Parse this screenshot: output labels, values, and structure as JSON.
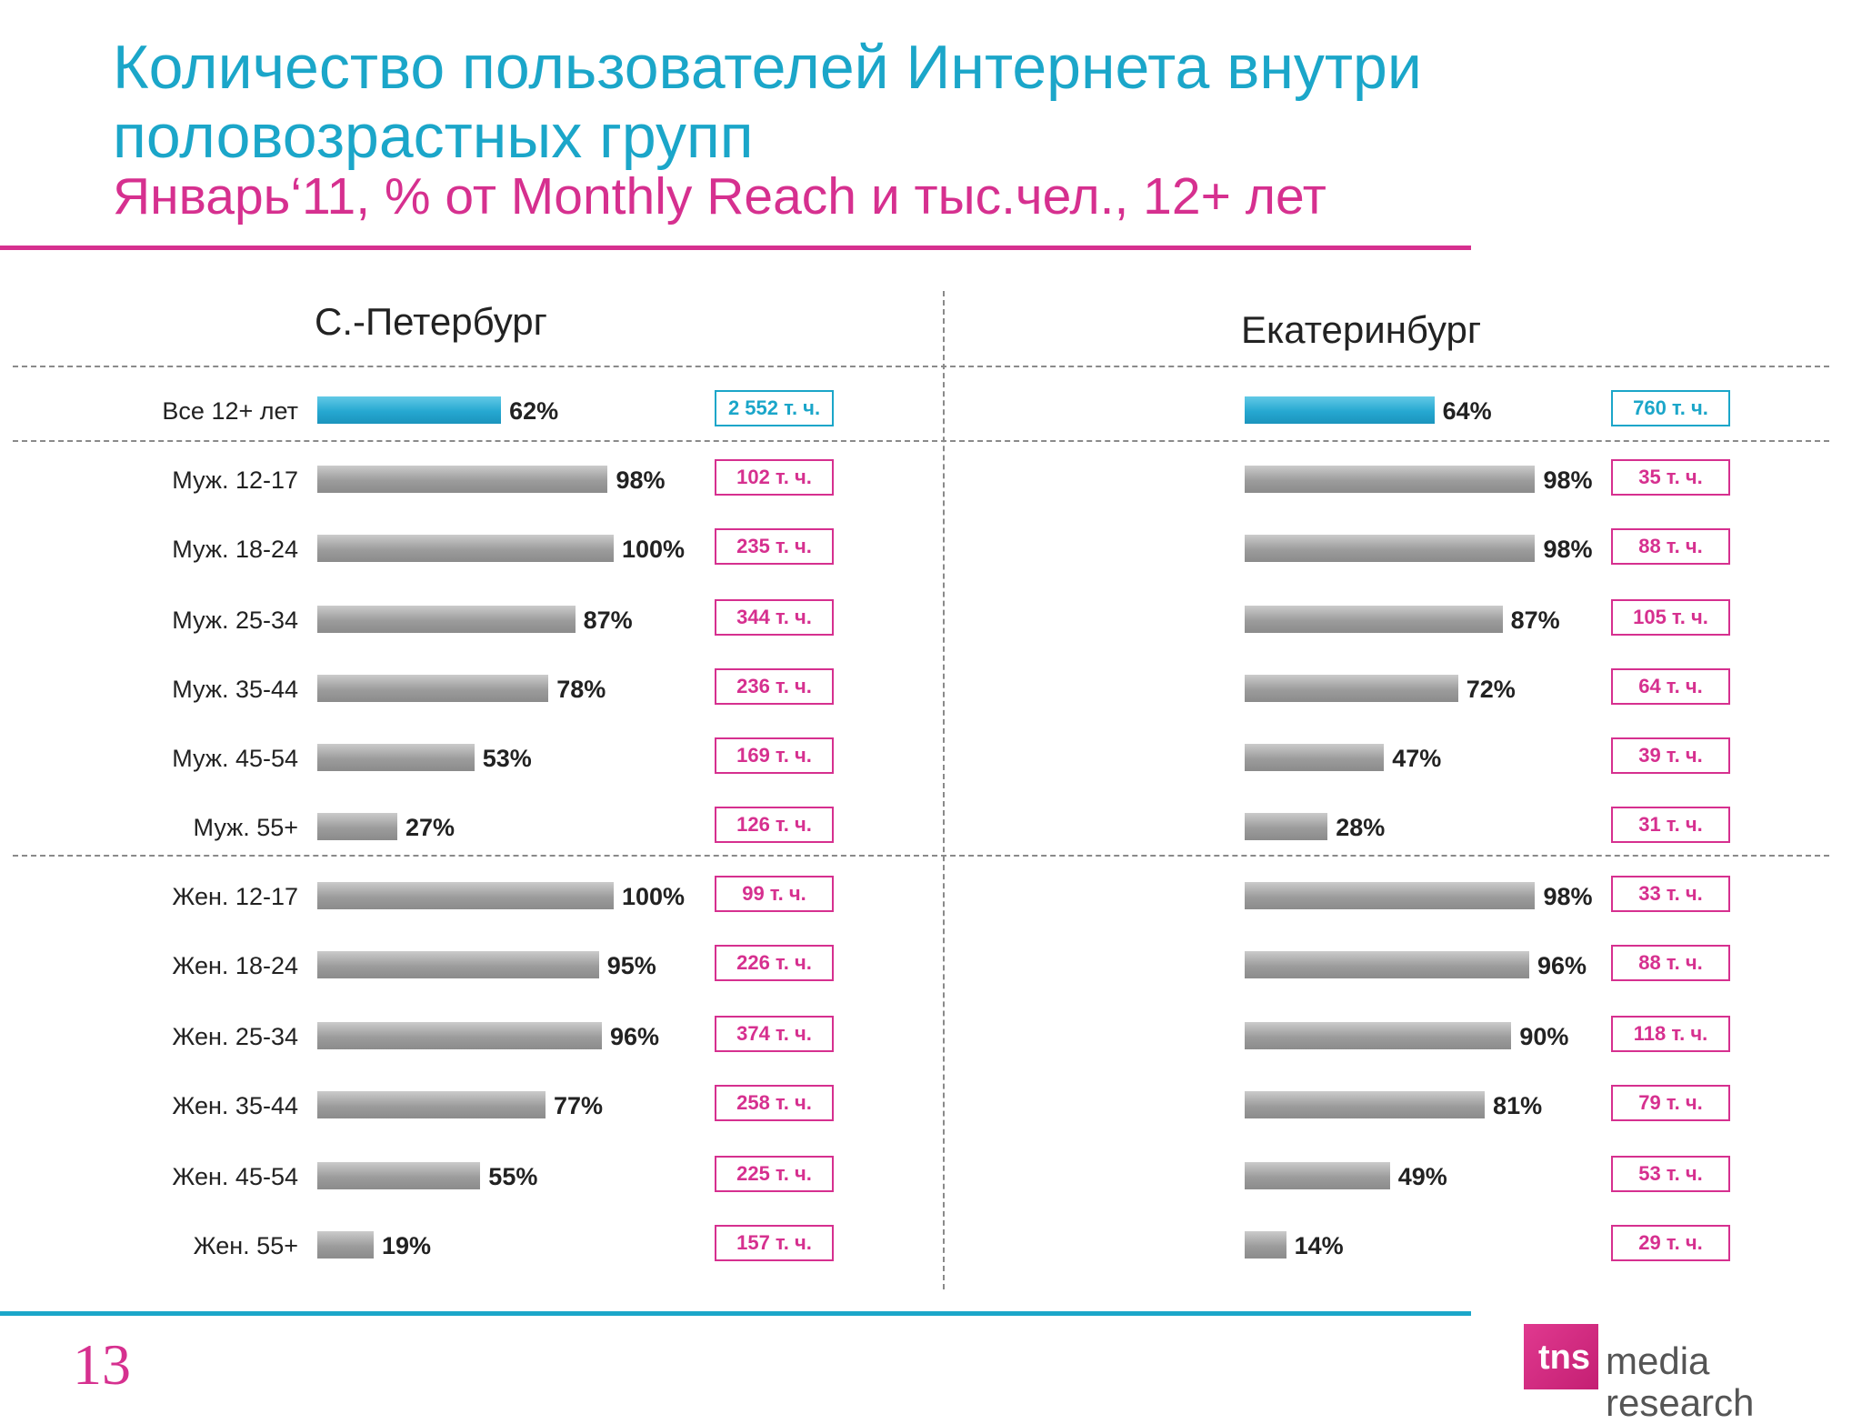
{
  "title": "Количество пользователей Интернета внутри половозрастных групп",
  "subtitle": "Январь‘11, % от Monthly Reach и тыс.чел., 12+ лет",
  "page_number": "13",
  "logo": {
    "brand": "tns",
    "text": "media research"
  },
  "colors": {
    "title": "#1ba6c9",
    "accent": "#d6308f",
    "bar": "#9c9c9c",
    "total_bar": "#26a8d1"
  },
  "chart_data": [
    {
      "type": "bar",
      "title": "С.-Петербург",
      "orientation": "horizontal",
      "xlim": [
        0,
        100
      ],
      "categories": [
        "Все 12+ лет",
        "Муж. 12-17",
        "Муж. 18-24",
        "Муж. 25-34",
        "Муж. 35-44",
        "Муж. 45-54",
        "Муж. 55+",
        "Жен. 12-17",
        "Жен. 18-24",
        "Жен. 25-34",
        "Жен. 35-44",
        "Жен. 45-54",
        "Жен. 55+"
      ],
      "values": [
        62,
        98,
        100,
        87,
        78,
        53,
        27,
        100,
        95,
        96,
        77,
        55,
        19
      ],
      "value_labels": [
        "62%",
        "98%",
        "100%",
        "87%",
        "78%",
        "53%",
        "27%",
        "100%",
        "95%",
        "96%",
        "77%",
        "55%",
        "19%"
      ],
      "counts": [
        "2 552 т. ч.",
        "102 т. ч.",
        "235 т. ч.",
        "344 т. ч.",
        "236 т. ч.",
        "169 т. ч.",
        "126 т. ч.",
        "99 т. ч.",
        "226 т. ч.",
        "374 т. ч.",
        "258 т. ч.",
        "225 т. ч.",
        "157 т. ч."
      ]
    },
    {
      "type": "bar",
      "title": "Екатеринбург",
      "orientation": "horizontal",
      "xlim": [
        0,
        100
      ],
      "categories": [
        "Все 12+ лет",
        "Муж. 12-17",
        "Муж. 18-24",
        "Муж. 25-34",
        "Муж. 35-44",
        "Муж. 45-54",
        "Муж. 55+",
        "Жен. 12-17",
        "Жен. 18-24",
        "Жен. 25-34",
        "Жен. 35-44",
        "Жен. 45-54",
        "Жен. 55+"
      ],
      "values": [
        64,
        98,
        98,
        87,
        72,
        47,
        28,
        98,
        96,
        90,
        81,
        49,
        14
      ],
      "value_labels": [
        "64%",
        "98%",
        "98%",
        "87%",
        "72%",
        "47%",
        "28%",
        "98%",
        "96%",
        "90%",
        "81%",
        "49%",
        "14%"
      ],
      "counts": [
        "760 т. ч.",
        "35 т. ч.",
        "88 т. ч.",
        "105 т. ч.",
        "64 т. ч.",
        "39 т. ч.",
        "31 т. ч.",
        "33 т. ч.",
        "88 т. ч.",
        "118 т. ч.",
        "79 т. ч.",
        "53 т. ч.",
        "29 т. ч."
      ]
    }
  ]
}
